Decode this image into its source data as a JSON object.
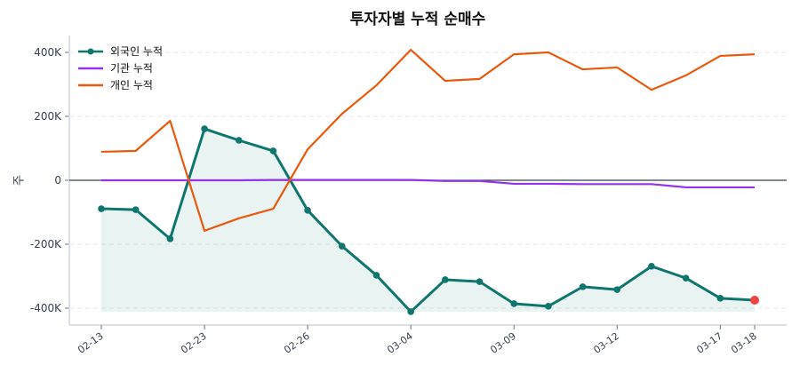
{
  "chart_data": {
    "type": "line",
    "title": "투자자별 누적 순매수",
    "ylabel": "주",
    "ylim": [
      -450000,
      450000
    ],
    "yticks": [
      -400000,
      -200000,
      0,
      200000,
      400000
    ],
    "ytick_labels": [
      "-400K",
      "-200K",
      "0",
      "200K",
      "400K"
    ],
    "grid": true,
    "legend": "top-left",
    "x": [
      "02-13",
      "02-14",
      "02-17",
      "02-23",
      "02-24",
      "02-25",
      "02-26",
      "02-27",
      "02-28",
      "03-04",
      "03-05",
      "03-06",
      "03-09",
      "03-10",
      "03-11",
      "03-12",
      "03-13",
      "03-14",
      "03-17",
      "03-18"
    ],
    "xtick_labels": [
      "02-13",
      "02-23",
      "02-26",
      "03-04",
      "03-09",
      "03-12",
      "03-17",
      "03-18"
    ],
    "xtick_index": [
      0,
      3,
      6,
      9,
      12,
      15,
      18,
      19
    ],
    "series": [
      {
        "name": "외국인 누적",
        "color": "#0f766e",
        "markers": true,
        "fill": true,
        "last_point_color": "#ef4444",
        "values": [
          -89000,
          -92000,
          -183000,
          161000,
          125000,
          92000,
          -94000,
          -206000,
          -297000,
          -411000,
          -311000,
          -317000,
          -386000,
          -394000,
          -333000,
          -342000,
          -269000,
          -306000,
          -369000,
          -375000
        ]
      },
      {
        "name": "기관 누적",
        "color": "#9333ea",
        "values": [
          0,
          0,
          0,
          0,
          0,
          1000,
          1000,
          1000,
          1000,
          1000,
          -2000,
          -2000,
          -11000,
          -11000,
          -12000,
          -12000,
          -12000,
          -22000,
          -22000,
          -22000
        ]
      },
      {
        "name": "개인 누적",
        "color": "#ea580c",
        "values": [
          89000,
          92000,
          186000,
          -158000,
          -119000,
          -89000,
          97000,
          208000,
          297000,
          408000,
          311000,
          317000,
          394000,
          400000,
          347000,
          353000,
          283000,
          328000,
          389000,
          394000
        ]
      }
    ]
  }
}
